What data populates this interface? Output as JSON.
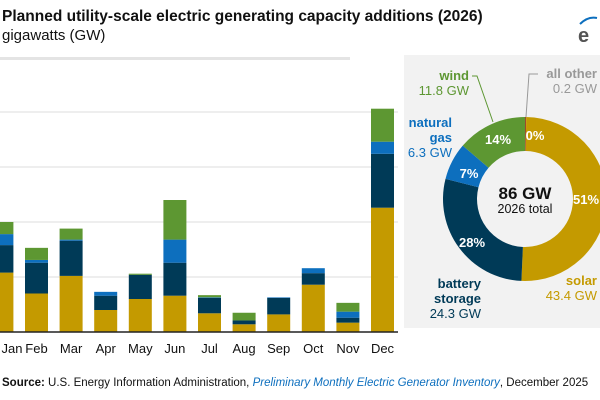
{
  "title": "Planned utility-scale electric generating capacity additions (2026)",
  "subtitle": "gigawatts (GW)",
  "source": {
    "prefix": "Source:",
    "agency": "U.S. Energy Information Administration,",
    "publication": "Preliminary Monthly Electric Generator Inventory",
    "date": ", December 2025"
  },
  "colors": {
    "solar": "#c49a00",
    "battery": "#003a57",
    "gas": "#0d6fbe",
    "wind": "#5d9732",
    "other": "#9c4a2c"
  },
  "chart_data": [
    {
      "type": "bar",
      "stacked": true,
      "title": "Planned utility-scale electric generating capacity additions (2026)",
      "ylabel": "gigawatts (GW)",
      "ylim": [
        0,
        20
      ],
      "grid": true,
      "categories": [
        "Jan",
        "Feb",
        "Mar",
        "Apr",
        "May",
        "Jun",
        "Jul",
        "Aug",
        "Sep",
        "Oct",
        "Nov",
        "Dec"
      ],
      "series": [
        {
          "name": "solar",
          "values": [
            5.4,
            3.5,
            5.1,
            2.0,
            3.0,
            3.3,
            1.7,
            0.7,
            1.6,
            4.3,
            0.85,
            11.3
          ]
        },
        {
          "name": "battery storage",
          "values": [
            2.5,
            2.8,
            3.2,
            1.3,
            2.2,
            3.0,
            1.4,
            0.35,
            1.5,
            1.05,
            0.45,
            4.9
          ]
        },
        {
          "name": "natural gas",
          "values": [
            1.0,
            0.25,
            0.1,
            0.35,
            0.0,
            2.1,
            0.05,
            0.0,
            0.05,
            0.45,
            0.55,
            1.1
          ]
        },
        {
          "name": "wind",
          "values": [
            1.1,
            1.1,
            1.0,
            0.0,
            0.1,
            3.6,
            0.2,
            0.7,
            0.0,
            0.0,
            0.8,
            3.0
          ]
        }
      ]
    },
    {
      "type": "pie",
      "donut": true,
      "center_value": "86 GW",
      "center_label": "2026 total",
      "slices": [
        {
          "name": "all other",
          "value": 0.2,
          "label": "0.2 GW",
          "pct": "0%",
          "key": "other"
        },
        {
          "name": "solar",
          "value": 43.4,
          "label": "43.4 GW",
          "pct": "51%",
          "key": "solar"
        },
        {
          "name": "battery storage",
          "value": 24.3,
          "label": "24.3 GW",
          "pct": "28%",
          "key": "battery"
        },
        {
          "name": "natural gas",
          "value": 6.3,
          "label": "6.3 GW",
          "pct": "7%",
          "key": "gas"
        },
        {
          "name": "wind",
          "value": 11.8,
          "label": "11.8 GW",
          "pct": "14%",
          "key": "wind"
        }
      ]
    }
  ]
}
